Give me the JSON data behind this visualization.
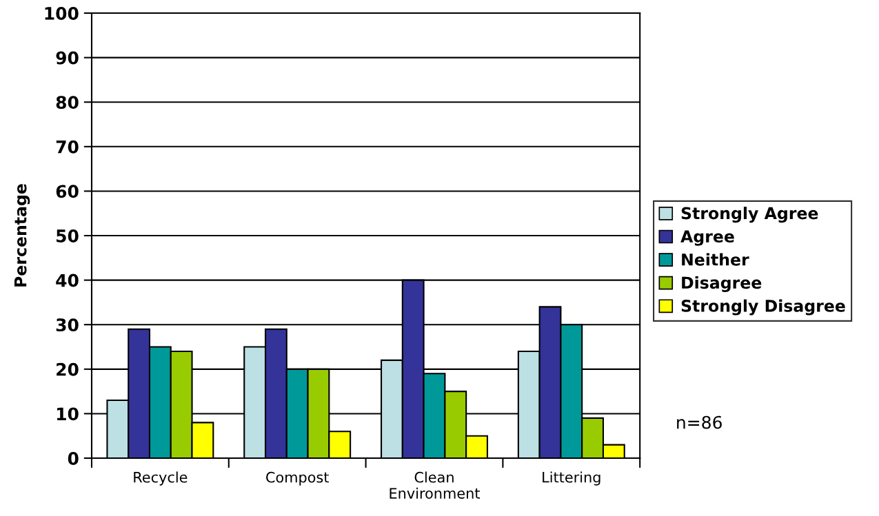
{
  "chart_data": {
    "type": "bar",
    "ylabel": "Percentage",
    "categories": [
      "Recycle",
      "Compost",
      "Clean\nEnvironment",
      "Littering"
    ],
    "series": [
      {
        "name": "Strongly Agree",
        "color": "#bce0e3",
        "values": [
          13,
          25,
          22,
          24
        ]
      },
      {
        "name": "Agree",
        "color": "#333399",
        "values": [
          29,
          29,
          40,
          34
        ]
      },
      {
        "name": "Neither",
        "color": "#009999",
        "values": [
          25,
          20,
          19,
          30
        ]
      },
      {
        "name": "Disagree",
        "color": "#99cc00",
        "values": [
          24,
          20,
          15,
          9
        ]
      },
      {
        "name": "Strongly Disagree",
        "color": "#ffff00",
        "values": [
          8,
          6,
          5,
          3
        ]
      }
    ],
    "ylim": [
      0,
      100
    ],
    "yticks": [
      0,
      10,
      20,
      30,
      40,
      50,
      60,
      70,
      80,
      90,
      100
    ],
    "grid": "y",
    "legend": "right",
    "annotations": [
      "n=86"
    ]
  }
}
